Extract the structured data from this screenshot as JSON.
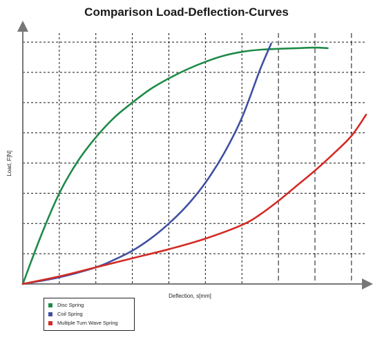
{
  "chart_data": {
    "type": "line",
    "title": "Comparison Load-Deflection-Curves",
    "xlabel": "Deflection, s[mm]",
    "ylabel": "Load, F[N]",
    "xlim": [
      0,
      9.4
    ],
    "ylim": [
      0,
      8.3
    ],
    "x_gridlines": [
      1,
      2,
      3,
      4,
      5,
      6,
      7,
      8,
      9
    ],
    "y_gridlines": [
      1,
      2,
      3,
      4,
      5,
      6,
      7,
      8
    ],
    "grid": true,
    "legend_position": "bottom-left",
    "series": [
      {
        "name": "Disc Spring",
        "color": "#1e8a47",
        "points": [
          [
            0,
            0
          ],
          [
            0.5,
            1.6
          ],
          [
            1,
            3.0
          ],
          [
            1.5,
            4.05
          ],
          [
            2,
            4.85
          ],
          [
            2.5,
            5.5
          ],
          [
            3,
            6.0
          ],
          [
            3.5,
            6.45
          ],
          [
            4,
            6.8
          ],
          [
            4.5,
            7.1
          ],
          [
            5,
            7.35
          ],
          [
            5.5,
            7.55
          ],
          [
            6,
            7.68
          ],
          [
            6.5,
            7.75
          ],
          [
            7,
            7.78
          ],
          [
            7.5,
            7.8
          ],
          [
            8,
            7.82
          ],
          [
            8.35,
            7.8
          ]
        ]
      },
      {
        "name": "Coil Spring",
        "color": "#3f4fa2",
        "points": [
          [
            0,
            0
          ],
          [
            1,
            0.22
          ],
          [
            2,
            0.55
          ],
          [
            2.5,
            0.8
          ],
          [
            3,
            1.1
          ],
          [
            3.5,
            1.5
          ],
          [
            4,
            2.0
          ],
          [
            4.5,
            2.6
          ],
          [
            5,
            3.35
          ],
          [
            5.5,
            4.3
          ],
          [
            6,
            5.5
          ],
          [
            6.5,
            7.1
          ],
          [
            6.8,
            7.95
          ]
        ]
      },
      {
        "name": "Multiple Turn Wave Spring",
        "color": "#d42a24",
        "points": [
          [
            0,
            0
          ],
          [
            1,
            0.25
          ],
          [
            2,
            0.55
          ],
          [
            3,
            0.85
          ],
          [
            4,
            1.15
          ],
          [
            5,
            1.5
          ],
          [
            6,
            1.95
          ],
          [
            6.5,
            2.3
          ],
          [
            7,
            2.75
          ],
          [
            7.5,
            3.25
          ],
          [
            8,
            3.75
          ],
          [
            8.5,
            4.3
          ],
          [
            9,
            4.9
          ],
          [
            9.4,
            5.6
          ]
        ]
      }
    ]
  }
}
